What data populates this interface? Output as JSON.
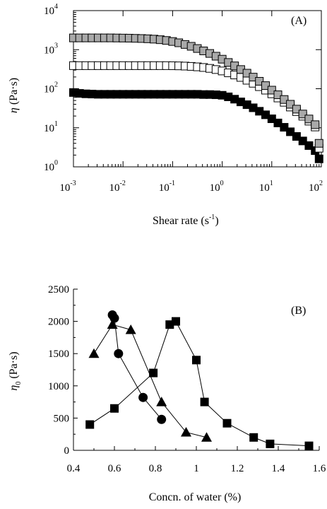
{
  "chart_data": [
    {
      "type": "scatter",
      "panel_label": "(A)",
      "xlabel_base": "Shear rate (s",
      "xlabel_exp": "-1",
      "xlabel_close": ")",
      "ylabel_symbol": "η",
      "ylabel_unit": "(Pa·s)",
      "x_scale": "log",
      "y_scale": "log",
      "xlim": [
        0.001,
        100
      ],
      "ylim": [
        1,
        10000
      ],
      "x_ticks": [
        {
          "base": "10",
          "exp": "-3",
          "value": 0.001
        },
        {
          "base": "10",
          "exp": "-2",
          "value": 0.01
        },
        {
          "base": "10",
          "exp": "-1",
          "value": 0.1
        },
        {
          "base": "10",
          "exp": "0",
          "value": 1
        },
        {
          "base": "10",
          "exp": "1",
          "value": 10
        },
        {
          "base": "10",
          "exp": "2",
          "value": 100
        }
      ],
      "y_ticks": [
        {
          "base": "10",
          "exp": "0",
          "value": 1
        },
        {
          "base": "10",
          "exp": "1",
          "value": 10
        },
        {
          "base": "10",
          "exp": "2",
          "value": 100
        },
        {
          "base": "10",
          "exp": "3",
          "value": 1000
        },
        {
          "base": "10",
          "exp": "4",
          "value": 10000
        }
      ],
      "series": [
        {
          "marker": "square",
          "fill": "#a9a9a9",
          "x": [
            0.001,
            0.00133,
            0.00178,
            0.00237,
            0.00316,
            0.00422,
            0.00562,
            0.0075,
            0.01,
            0.0133,
            0.0178,
            0.0237,
            0.0316,
            0.0422,
            0.0562,
            0.075,
            0.1,
            0.133,
            0.178,
            0.237,
            0.316,
            0.422,
            0.562,
            0.75,
            1.0,
            1.33,
            1.78,
            2.37,
            3.16,
            4.22,
            5.62,
            7.5,
            10,
            13.3,
            17.8,
            23.7,
            31.6,
            42.2,
            56.2,
            75,
            90
          ],
          "y": [
            2000,
            2000,
            2000,
            2000,
            2000,
            2000,
            2000,
            1990,
            1980,
            1970,
            1950,
            1930,
            1900,
            1860,
            1800,
            1720,
            1620,
            1500,
            1360,
            1220,
            1070,
            930,
            800,
            680,
            570,
            470,
            385,
            310,
            250,
            198,
            155,
            120,
            92,
            70,
            53,
            40,
            30,
            22.5,
            16.8,
            12.0,
            4.0
          ]
        },
        {
          "marker": "square",
          "fill": "#ffffff",
          "x": [
            0.001,
            0.00133,
            0.00178,
            0.00237,
            0.00316,
            0.00422,
            0.00562,
            0.0075,
            0.01,
            0.0133,
            0.0178,
            0.0237,
            0.0316,
            0.0422,
            0.0562,
            0.075,
            0.1,
            0.133,
            0.178,
            0.237,
            0.316,
            0.422,
            0.562,
            0.75,
            1.0,
            1.33,
            1.78,
            2.37,
            3.16,
            4.22,
            5.62,
            7.5,
            10,
            13.3,
            17.8,
            23.7,
            31.6,
            42.2,
            56.2,
            75,
            90
          ],
          "y": [
            390,
            390,
            390,
            390,
            390,
            390,
            390,
            390,
            390,
            390,
            390,
            390,
            390,
            390,
            390,
            390,
            388,
            385,
            380,
            373,
            363,
            350,
            332,
            310,
            285,
            255,
            225,
            195,
            165,
            138,
            113,
            92,
            74,
            58,
            45,
            34,
            26,
            19.8,
            14.8,
            10.5,
            3.0
          ]
        },
        {
          "marker": "square",
          "fill": "#000000",
          "x": [
            0.001,
            0.00133,
            0.00178,
            0.00237,
            0.00316,
            0.00422,
            0.00562,
            0.0075,
            0.01,
            0.0133,
            0.0178,
            0.0237,
            0.0316,
            0.0422,
            0.0562,
            0.075,
            0.1,
            0.133,
            0.178,
            0.237,
            0.316,
            0.422,
            0.562,
            0.75,
            1.0,
            1.33,
            1.78,
            2.37,
            3.16,
            4.22,
            5.62,
            7.5,
            10,
            13.3,
            17.8,
            23.7,
            31.6,
            42.2,
            56.2,
            75,
            90
          ],
          "y": [
            80,
            76,
            74,
            73,
            72,
            72,
            72,
            72,
            72,
            72,
            72,
            72,
            72,
            72,
            72,
            72,
            72,
            72,
            72,
            72,
            72,
            71,
            71,
            70,
            68,
            62,
            54,
            46,
            39,
            32.5,
            26.5,
            21.5,
            17.0,
            13.3,
            10.3,
            7.9,
            6.0,
            4.6,
            3.5,
            2.6,
            1.6
          ]
        }
      ]
    },
    {
      "type": "line",
      "panel_label": "(B)",
      "xlabel": "Concn. of water (%)",
      "ylabel_symbol": "η",
      "ylabel_sub": "0",
      "ylabel_unit": "(Pa·s)",
      "xlim": [
        0.4,
        1.6
      ],
      "ylim": [
        0,
        2500
      ],
      "x_ticks": [
        "0.4",
        "0.6",
        "0.8",
        "1",
        "1.2",
        "1.4",
        "1.6"
      ],
      "y_ticks": [
        "0",
        "500",
        "1000",
        "1500",
        "2000",
        "2500"
      ],
      "series": [
        {
          "marker": "circle",
          "x": [
            0.59,
            0.6,
            0.62,
            0.74,
            0.83
          ],
          "y": [
            2100,
            2050,
            1500,
            820,
            480
          ]
        },
        {
          "marker": "triangle",
          "x": [
            0.5,
            0.59,
            0.68,
            0.83,
            0.95,
            1.05
          ],
          "y": [
            1500,
            1950,
            1870,
            750,
            280,
            200
          ]
        },
        {
          "marker": "square",
          "x": [
            0.48,
            0.6,
            0.79,
            0.87,
            0.9,
            1.0,
            1.04,
            1.15,
            1.28,
            1.36,
            1.55
          ],
          "y": [
            400,
            650,
            1200,
            1950,
            2000,
            1400,
            750,
            420,
            200,
            100,
            70
          ]
        }
      ]
    }
  ]
}
